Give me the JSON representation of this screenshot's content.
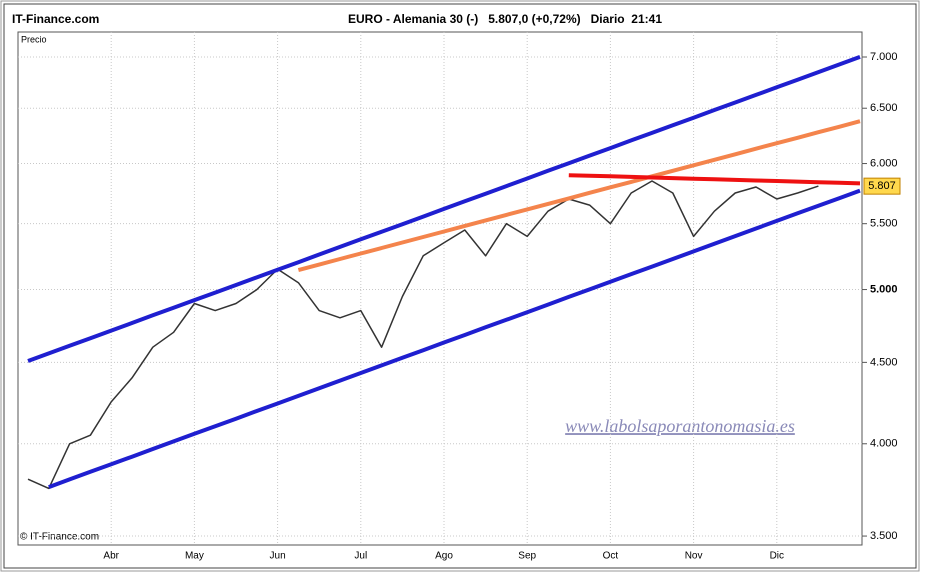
{
  "header": {
    "site": "IT-Finance.com",
    "title": "EURO - Alemania 30 (-)   5.807,0 (+0,72%)   Diario  21:41"
  },
  "chart_data": {
    "type": "line",
    "log_scale": true,
    "grid": true,
    "axis_label": "Precio",
    "copyright": "© IT-Finance.com",
    "watermark": "www.labolsaporantonomasia.es",
    "categories": [
      null,
      null,
      null,
      null,
      "Abr",
      null,
      null,
      null,
      "May",
      null,
      null,
      null,
      "Jun",
      null,
      null,
      null,
      "Jul",
      null,
      null,
      null,
      "Ago",
      null,
      null,
      null,
      "Sep",
      null,
      null,
      null,
      "Oct",
      null,
      null,
      null,
      "Nov",
      null,
      null,
      null,
      "Dic",
      null,
      null,
      null,
      null
    ],
    "series": [
      {
        "color": "#333333",
        "values": [
          3800,
          3750,
          4000,
          4050,
          4250,
          4400,
          4600,
          4700,
          4900,
          4850,
          4900,
          5000,
          5150,
          5050,
          4850,
          4800,
          4850,
          4600,
          4950,
          5250,
          5350,
          5450,
          5250,
          5500,
          5400,
          5600,
          5700,
          5650,
          5500,
          5750,
          5850,
          5750,
          5400,
          5600,
          5750,
          5800,
          5700,
          5750,
          5807,
          null,
          null
        ]
      },
      {
        "color": "#1f1fd0",
        "values": [
          4509,
          4559,
          4609,
          4660,
          4712,
          4764,
          4817,
          4870,
          4924,
          4978,
          5033,
          5089,
          5145,
          5202,
          5260,
          5318,
          5377,
          5436,
          5496,
          5557,
          5619,
          5681,
          5744,
          5807,
          5872,
          5937,
          6002,
          6069,
          6136,
          6204,
          6272,
          6342,
          6412,
          6483,
          6554,
          6627,
          6700,
          6774,
          6849,
          6925,
          7001
        ]
      },
      {
        "color": "#1f1fd0",
        "values": [
          null,
          3757,
          3799,
          3841,
          3883,
          3926,
          3970,
          4014,
          4058,
          4103,
          4148,
          4194,
          4240,
          4287,
          4335,
          4383,
          4431,
          4480,
          4530,
          4580,
          4631,
          4682,
          4734,
          4786,
          4839,
          4892,
          4947,
          5001,
          5057,
          5113,
          5169,
          5226,
          5284,
          5343,
          5402,
          5462,
          5522,
          5583,
          5645,
          5707,
          5770
        ]
      },
      {
        "color": "#f4844c",
        "values": [
          null,
          null,
          null,
          null,
          null,
          null,
          null,
          null,
          null,
          null,
          null,
          null,
          null,
          5143,
          5184,
          5226,
          5268,
          5310,
          5352,
          5395,
          5438,
          5482,
          5526,
          5570,
          5615,
          5660,
          5705,
          5751,
          5797,
          5843,
          5890,
          5937,
          5985,
          6033,
          6081,
          6130,
          6179,
          6228,
          6278,
          6328,
          6379
        ]
      },
      {
        "color": "#ee1111",
        "values": [
          null,
          null,
          null,
          null,
          null,
          null,
          null,
          null,
          null,
          null,
          null,
          null,
          null,
          null,
          null,
          null,
          null,
          null,
          null,
          null,
          null,
          null,
          null,
          null,
          null,
          null,
          5900,
          5895,
          5890,
          5885,
          5880,
          5875,
          5870,
          5865,
          5860,
          5855,
          5850,
          5845,
          5840,
          5835,
          5830
        ]
      }
    ],
    "last_price": {
      "value": 5807,
      "label": "5.807"
    },
    "ylim": [
      3455,
      7258
    ],
    "yticks": [
      {
        "value": 3500,
        "label": "3.500"
      },
      {
        "value": 4000,
        "label": "4.000"
      },
      {
        "value": 4500,
        "label": "4.500"
      },
      {
        "value": 5000,
        "label": "5.000"
      },
      {
        "value": 5500,
        "label": "5.500"
      },
      {
        "value": 6000,
        "label": "6.000"
      },
      {
        "value": 6500,
        "label": "6.500"
      },
      {
        "value": 7000,
        "label": "7.000"
      }
    ]
  }
}
